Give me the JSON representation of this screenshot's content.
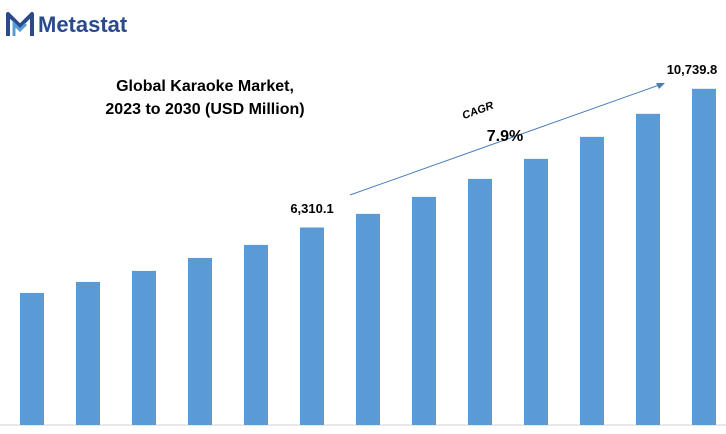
{
  "logo": "Metastat",
  "chart_data": {
    "type": "bar",
    "title": [
      "Global Karaoke Market,",
      "2023 to 2030 (USD Million)"
    ],
    "categories": [
      null,
      null,
      null,
      null,
      null,
      null,
      null,
      null,
      null,
      null,
      null,
      null,
      null
    ],
    "values": [
      4219,
      4570,
      4922,
      5337,
      5753,
      6310.1,
      6744,
      7287,
      7862,
      8501,
      9205,
      9940,
      10739.8
    ],
    "value_labels": [
      null,
      null,
      null,
      null,
      null,
      "6,310.1",
      null,
      null,
      null,
      null,
      null,
      null,
      "10,739.8"
    ],
    "color": "#5b9bd5",
    "ylim": [
      0,
      11500
    ],
    "annotations": [
      "CAGR",
      "7.9%"
    ]
  }
}
